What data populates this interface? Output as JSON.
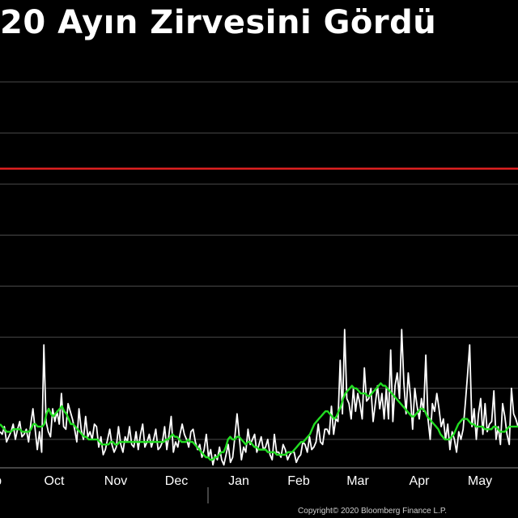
{
  "chart_data": {
    "type": "line",
    "title": "20 Ayın Zirvesini Gördü",
    "x_tick_labels": [
      "p",
      "Oct",
      "Nov",
      "Dec",
      "Jan",
      "Feb",
      "Mar",
      "Apr",
      "May"
    ],
    "x_range_days": [
      0,
      245
    ],
    "y_range": [
      0,
      9
    ],
    "grid": "horizontal",
    "reference_line": {
      "value": 6.3,
      "color": "#e02020"
    },
    "series": [
      {
        "color": "#ffffff",
        "values": [
          1.15,
          1.1,
          1.25,
          0.95,
          1.05,
          1.15,
          1.3,
          1.0,
          1.2,
          1.35,
          1.05,
          1.1,
          1.2,
          0.95,
          1.3,
          1.6,
          1.2,
          0.8,
          1.15,
          0.75,
          2.85,
          1.35,
          1.15,
          1.05,
          1.6,
          1.35,
          1.55,
          1.3,
          1.9,
          1.25,
          1.2,
          1.7,
          1.55,
          1.4,
          1.2,
          0.95,
          1.6,
          1.2,
          1.0,
          1.45,
          1.05,
          1.15,
          1.0,
          1.3,
          1.25,
          0.85,
          1.05,
          0.7,
          0.8,
          1.0,
          1.2,
          0.9,
          0.75,
          0.85,
          1.25,
          0.9,
          0.75,
          1.05,
          0.95,
          1.25,
          0.9,
          0.85,
          1.15,
          0.8,
          1.1,
          1.3,
          0.85,
          0.95,
          1.1,
          0.85,
          1.0,
          1.2,
          0.8,
          0.85,
          0.95,
          1.25,
          0.8,
          1.1,
          1.45,
          0.75,
          0.95,
          0.85,
          1.1,
          1.3,
          1.1,
          1.0,
          0.85,
          1.15,
          1.2,
          0.95,
          0.8,
          0.9,
          0.65,
          0.8,
          1.1,
          0.65,
          0.8,
          0.5,
          0.7,
          0.6,
          0.85,
          0.6,
          0.5,
          0.7,
          0.9,
          0.55,
          0.65,
          1.05,
          1.5,
          1.05,
          0.6,
          0.85,
          0.75,
          1.2,
          0.9,
          1.0,
          1.1,
          0.75,
          0.9,
          1.05,
          0.8,
          0.85,
          1.0,
          0.7,
          0.6,
          1.1,
          0.75,
          0.75,
          0.65,
          0.9,
          0.8,
          0.6,
          0.7,
          0.75,
          0.75,
          0.55,
          0.65,
          0.7,
          0.95,
          0.9,
          0.75,
          1.05,
          0.8,
          0.85,
          0.95,
          1.3,
          0.95,
          0.9,
          1.2,
          1.2,
          1.1,
          1.65,
          1.1,
          1.4,
          1.35,
          2.55,
          1.5,
          3.15,
          1.8,
          1.7,
          1.4,
          2.0,
          1.55,
          1.9,
          1.7,
          1.4,
          2.4,
          1.75,
          1.8,
          2.0,
          1.35,
          1.7,
          2.05,
          1.6,
          1.9,
          1.4,
          2.0,
          1.4,
          2.75,
          1.35,
          2.05,
          2.3,
          1.8,
          3.15,
          2.1,
          1.5,
          2.3,
          1.85,
          1.2,
          2.0,
          1.65,
          1.4,
          1.8,
          1.55,
          2.65,
          1.4,
          1.0,
          1.7,
          1.55,
          1.9,
          1.6,
          1.25,
          1.4,
          1.0,
          1.3,
          0.8,
          1.15,
          1.0,
          0.75,
          1.15,
          1.0,
          1.2,
          1.7,
          2.25,
          2.85,
          1.25,
          1.6,
          1.0,
          1.5,
          1.8,
          1.1,
          1.7,
          1.15,
          1.3,
          1.35,
          1.95,
          1.0,
          1.25,
          0.9,
          1.7,
          1.45,
          1.1,
          0.9,
          2.0,
          1.5,
          1.4,
          1.25
        ]
      },
      {
        "color": "#22dd22",
        "values": [
          1.3,
          1.25,
          1.2,
          1.15,
          1.15,
          1.15,
          1.2,
          1.2,
          1.2,
          1.2,
          1.15,
          1.15,
          1.15,
          1.15,
          1.2,
          1.3,
          1.3,
          1.25,
          1.25,
          1.25,
          1.3,
          1.5,
          1.6,
          1.5,
          1.45,
          1.5,
          1.55,
          1.6,
          1.65,
          1.55,
          1.5,
          1.4,
          1.3,
          1.3,
          1.25,
          1.2,
          1.15,
          1.1,
          1.05,
          1.05,
          1.0,
          1.0,
          1.0,
          1.0,
          1.0,
          0.95,
          0.9,
          0.9,
          0.9,
          0.9,
          0.95,
          0.95,
          0.9,
          0.9,
          0.95,
          0.95,
          0.95,
          0.95,
          0.95,
          0.95,
          0.95,
          0.95,
          0.95,
          0.95,
          0.95,
          0.95,
          0.95,
          0.95,
          0.95,
          0.95,
          0.95,
          0.95,
          0.95,
          0.95,
          0.95,
          1.0,
          1.0,
          1.05,
          1.1,
          1.05,
          1.05,
          1.0,
          0.95,
          0.95,
          0.95,
          1.0,
          0.95,
          0.95,
          0.9,
          0.85,
          0.8,
          0.75,
          0.7,
          0.65,
          0.65,
          0.6,
          0.6,
          0.65,
          0.65,
          0.7,
          0.75,
          0.75,
          0.85,
          1.0,
          1.05,
          1.0,
          1.0,
          1.05,
          1.05,
          1.0,
          0.95,
          0.9,
          0.95,
          0.95,
          0.9,
          0.85,
          0.85,
          0.8,
          0.8,
          0.8,
          0.8,
          0.75,
          0.75,
          0.75,
          0.75,
          0.7,
          0.7,
          0.7,
          0.7,
          0.7,
          0.75,
          0.75,
          0.75,
          0.8,
          0.85,
          0.9,
          0.95,
          0.95,
          1.0,
          1.05,
          1.1,
          1.2,
          1.3,
          1.35,
          1.4,
          1.45,
          1.5,
          1.55,
          1.55,
          1.5,
          1.45,
          1.4,
          1.45,
          1.55,
          1.65,
          1.8,
          1.9,
          1.95,
          2.0,
          2.05,
          2.0,
          2.0,
          1.95,
          1.9,
          1.9,
          1.9,
          1.85,
          1.85,
          1.9,
          1.95,
          2.0,
          2.05,
          2.1,
          2.05,
          2.05,
          2.0,
          1.95,
          1.9,
          1.85,
          1.8,
          1.75,
          1.7,
          1.65,
          1.6,
          1.55,
          1.5,
          1.45,
          1.45,
          1.5,
          1.55,
          1.6,
          1.6,
          1.55,
          1.45,
          1.4,
          1.35,
          1.3,
          1.25,
          1.2,
          1.1,
          1.05,
          1.0,
          1.0,
          1.0,
          1.05,
          1.1,
          1.2,
          1.3,
          1.35,
          1.4,
          1.4,
          1.4,
          1.35,
          1.3,
          1.3,
          1.25,
          1.25,
          1.25,
          1.25,
          1.2,
          1.2,
          1.2,
          1.2,
          1.25,
          1.25,
          1.2,
          1.15,
          1.15,
          1.15,
          1.2,
          1.25,
          1.25,
          1.25,
          1.25,
          1.25
        ]
      }
    ]
  },
  "copyright": "Copyright© 2020 Bloomberg Finance L.P."
}
